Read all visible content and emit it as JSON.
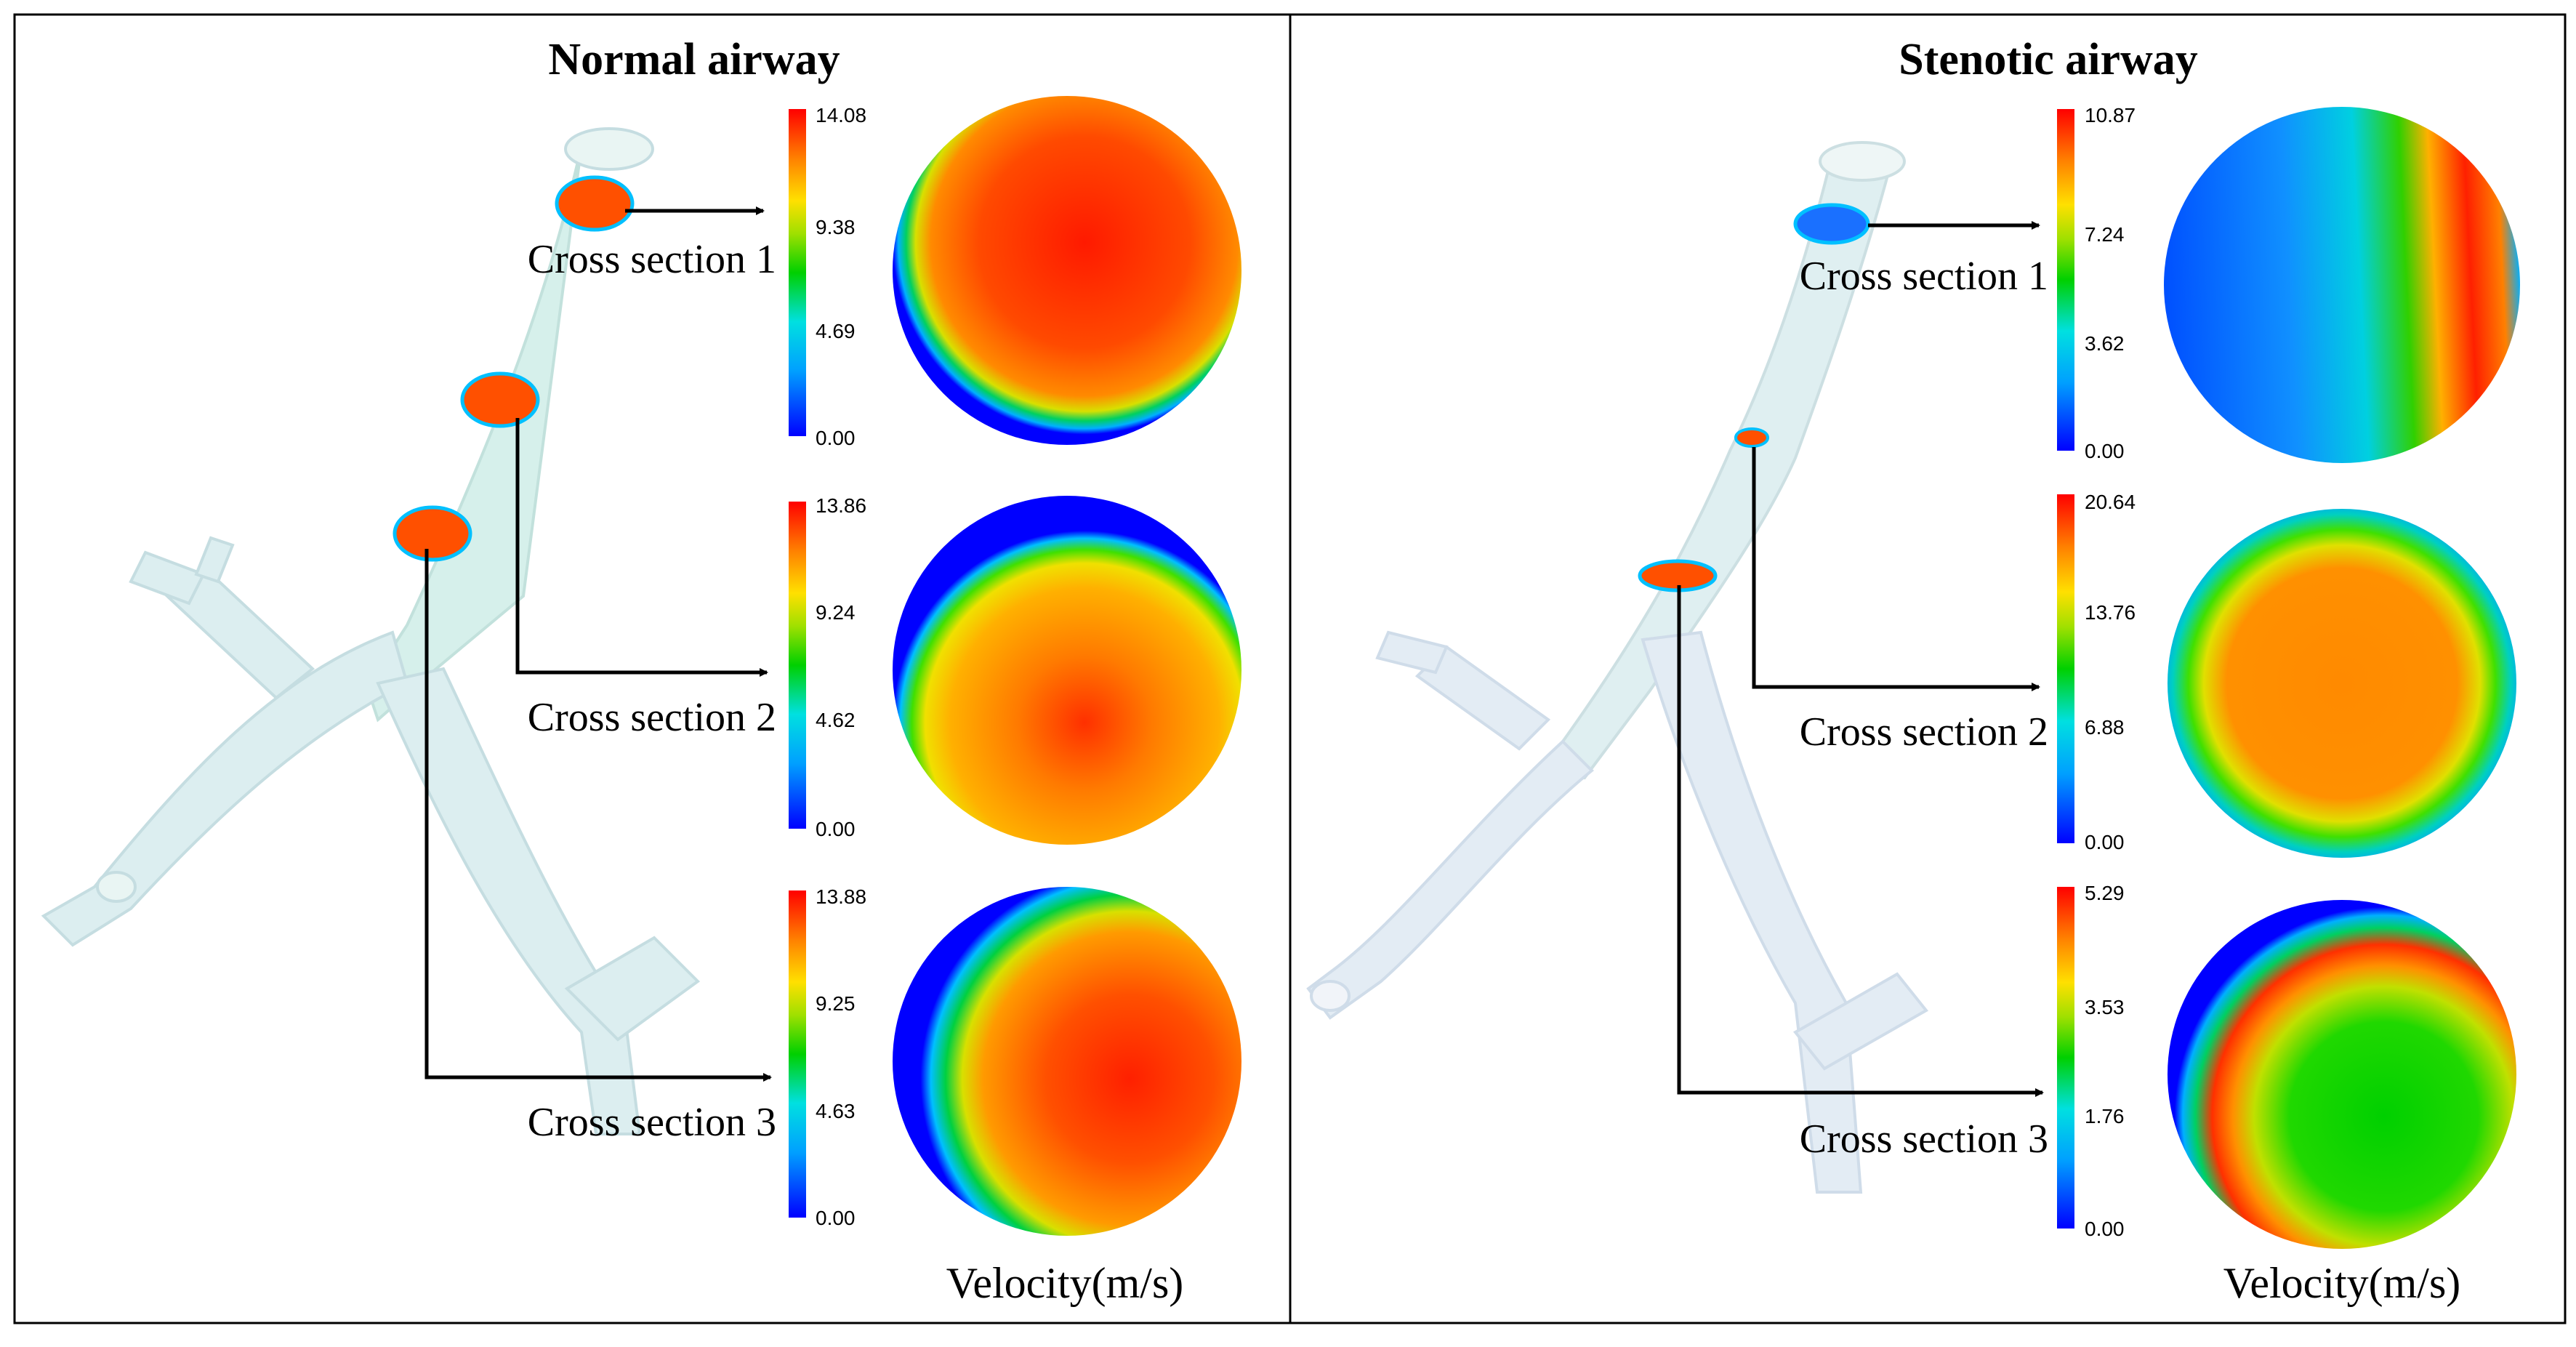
{
  "panels": [
    {
      "title": "Normal airway",
      "velocity_label": "Velocity(m/s)",
      "sections": [
        {
          "label": "Cross section 1",
          "ticks": [
            "14.08",
            "9.38",
            "4.69",
            "0.00"
          ]
        },
        {
          "label": "Cross section 2",
          "ticks": [
            "13.86",
            "9.24",
            "4.62",
            "0.00"
          ]
        },
        {
          "label": "Cross section 3",
          "ticks": [
            "13.88",
            "9.25",
            "4.63",
            "0.00"
          ]
        }
      ]
    },
    {
      "title": "Stenotic airway",
      "velocity_label": "Velocity(m/s)",
      "sections": [
        {
          "label": "Cross section 1",
          "ticks": [
            "10.87",
            "7.24",
            "3.62",
            "0.00"
          ]
        },
        {
          "label": "Cross section 2",
          "ticks": [
            "20.64",
            "13.76",
            "6.88",
            "0.00"
          ]
        },
        {
          "label": "Cross section 3",
          "ticks": [
            "5.29",
            "3.53",
            "1.76",
            "0.00"
          ]
        }
      ]
    }
  ],
  "colormap": [
    "#0000ff",
    "#00a0ff",
    "#00e0e0",
    "#00d000",
    "#a0e000",
    "#ffe000",
    "#ff8000",
    "#ff0000"
  ],
  "airway_color": "#cfeee8",
  "arrow_color": "#000000"
}
